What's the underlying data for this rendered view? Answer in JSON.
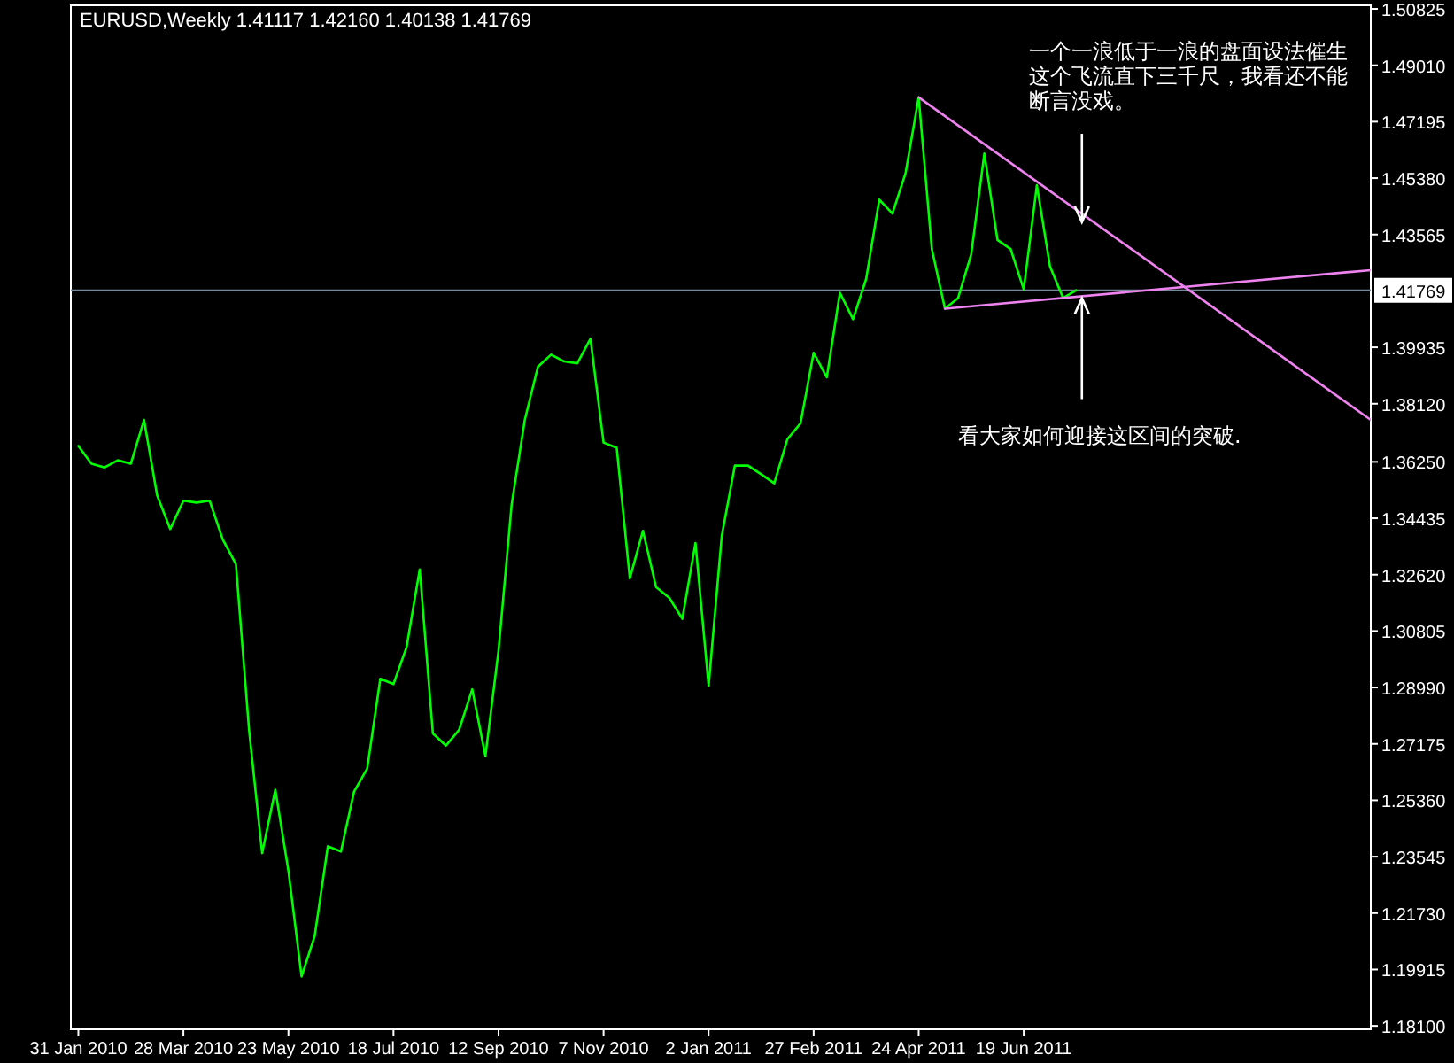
{
  "chart_data": {
    "type": "line",
    "title": "EURUSD,Weekly  1.41117 1.42160 1.40138 1.41769",
    "annotations": [
      {
        "text": "一个一浪低于一浪的盘面设法催生这个飞流直下三千尺，我看还不能断言没戏。",
        "x": "2011-07-20",
        "y": 1.4396
      },
      {
        "text": "看大家如何迎接这区间的突破.",
        "x": "2011-07-20",
        "y": 1.4152
      }
    ],
    "x": [
      "2010-01-31",
      "2010-02-07",
      "2010-02-14",
      "2010-02-21",
      "2010-02-28",
      "2010-03-07",
      "2010-03-14",
      "2010-03-21",
      "2010-03-28",
      "2010-04-04",
      "2010-04-11",
      "2010-04-18",
      "2010-04-25",
      "2010-05-02",
      "2010-05-09",
      "2010-05-16",
      "2010-05-23",
      "2010-05-30",
      "2010-06-06",
      "2010-06-13",
      "2010-06-20",
      "2010-06-27",
      "2010-07-04",
      "2010-07-11",
      "2010-07-18",
      "2010-07-25",
      "2010-08-01",
      "2010-08-08",
      "2010-08-15",
      "2010-08-22",
      "2010-08-29",
      "2010-09-05",
      "2010-09-12",
      "2010-09-19",
      "2010-09-26",
      "2010-10-03",
      "2010-10-10",
      "2010-10-17",
      "2010-10-24",
      "2010-10-31",
      "2010-11-07",
      "2010-11-14",
      "2010-11-21",
      "2010-11-28",
      "2010-12-05",
      "2010-12-12",
      "2010-12-19",
      "2010-12-26",
      "2011-01-02",
      "2011-01-09",
      "2011-01-16",
      "2011-01-23",
      "2011-01-30",
      "2011-02-06",
      "2011-02-13",
      "2011-02-20",
      "2011-02-27",
      "2011-03-06",
      "2011-03-13",
      "2011-03-20",
      "2011-03-27",
      "2011-04-03",
      "2011-04-10",
      "2011-04-17",
      "2011-04-24",
      "2011-05-01",
      "2011-05-08",
      "2011-05-15",
      "2011-05-22",
      "2011-05-29",
      "2011-06-05",
      "2011-06-12",
      "2011-06-19",
      "2011-06-26",
      "2011-07-03",
      "2011-07-10",
      "2011-07-17"
    ],
    "series": [
      {
        "color": "#00ff00",
        "values": [
          1.3676,
          1.3619,
          1.3607,
          1.363,
          1.3619,
          1.376,
          1.3517,
          1.3409,
          1.35,
          1.3494,
          1.35,
          1.3375,
          1.3296,
          1.2763,
          1.2366,
          1.257,
          1.2309,
          1.1969,
          1.2099,
          1.2388,
          1.2371,
          1.2564,
          1.2638,
          1.2927,
          1.291,
          1.3029,
          1.3279,
          1.2751,
          1.2712,
          1.2763,
          1.2893,
          1.2678,
          1.3018,
          1.3488,
          1.376,
          1.3931,
          1.397,
          1.3948,
          1.3942,
          1.4021,
          1.3687,
          1.367,
          1.325,
          1.3403,
          1.3222,
          1.3188,
          1.312,
          1.3364,
          1.2904,
          1.3386,
          1.3613,
          1.3613,
          1.3585,
          1.3556,
          1.3698,
          1.3749,
          1.3976,
          1.3897,
          1.4169,
          1.4084,
          1.4214,
          1.4469,
          1.4424,
          1.4554,
          1.4798,
          1.431,
          1.4118,
          1.4152,
          1.4293,
          1.4617,
          1.4339,
          1.431,
          1.418,
          1.4515,
          1.4254,
          1.4152,
          1.4177
        ]
      },
      {
        "type": "line",
        "color": "#ee82ee",
        "x": [
          "2011-04-24",
          "2011-12-21"
        ],
        "values": [
          1.4798,
          1.376
        ]
      },
      {
        "type": "line",
        "color": "#ee82ee",
        "x": [
          "2011-05-08",
          "2011-12-21"
        ],
        "values": [
          1.4118,
          1.4242
        ]
      }
    ],
    "xlim": [
      "2010-01-27",
      "2011-12-21"
    ],
    "xticks": [
      {
        "value": "2010-01-31",
        "label": "31 Jan 2010"
      },
      {
        "value": "2010-03-28",
        "label": "28 Mar 2010"
      },
      {
        "value": "2010-05-23",
        "label": "23 May 2010"
      },
      {
        "value": "2010-07-18",
        "label": "18 Jul 2010"
      },
      {
        "value": "2010-09-12",
        "label": "12 Sep 2010"
      },
      {
        "value": "2010-11-07",
        "label": "7 Nov 2010"
      },
      {
        "value": "2011-01-02",
        "label": "2 Jan 2011"
      },
      {
        "value": "2011-02-27",
        "label": "27 Feb 2011"
      },
      {
        "value": "2011-04-24",
        "label": "24 Apr 2011"
      },
      {
        "value": "2011-06-19",
        "label": "19 Jun 2011"
      }
    ],
    "ylim": [
      1.1799,
      1.5094
    ],
    "yticks": [
      1.50825,
      {
        "value": 1.4901,
        "label": "1.49010"
      },
      1.47195,
      {
        "value": 1.4538,
        "label": "1.45380"
      },
      1.43565,
      1.39935,
      {
        "value": 1.3812,
        "label": "1.38120"
      },
      {
        "value": 1.3625,
        "label": "1.36250"
      },
      1.34435,
      {
        "value": 1.3262,
        "label": "1.32620"
      },
      1.30805,
      {
        "value": 1.2899,
        "label": "1.28990"
      },
      1.27175,
      {
        "value": 1.2536,
        "label": "1.25360"
      },
      1.23545,
      {
        "value": 1.2173,
        "label": "1.21730"
      },
      1.19915,
      {
        "value": 1.181,
        "label": "1.18100"
      }
    ],
    "ref_lines": [
      {
        "axis": "y",
        "value": 1.41769,
        "label": "1.41769",
        "color": "#778899"
      }
    ]
  }
}
